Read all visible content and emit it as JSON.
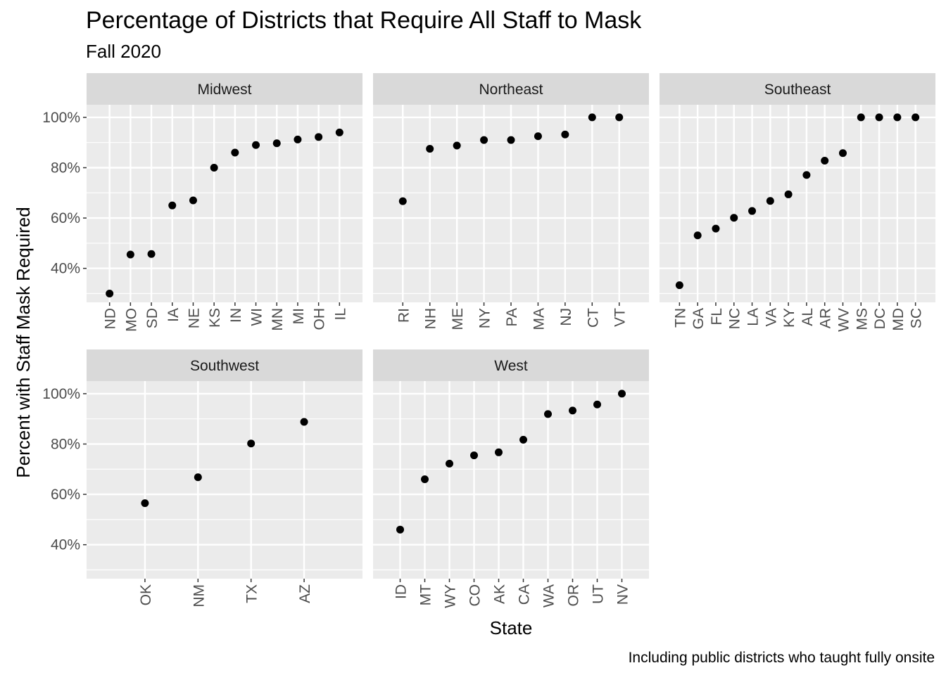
{
  "chart_data": {
    "type": "scatter",
    "title": "Percentage of Districts that Require All Staff to Mask",
    "subtitle": "Fall 2020",
    "xlabel": "State",
    "ylabel": "Percent with Staff Mask Required",
    "caption": "Including public districts who taught fully onsite",
    "ylim": [
      26.5,
      105
    ],
    "yticks": [
      40,
      60,
      80,
      100
    ],
    "ytick_labels": [
      "40%",
      "60%",
      "80%",
      "100%"
    ],
    "grid": true,
    "facets": [
      {
        "name": "Midwest",
        "categories": [
          "ND",
          "MO",
          "SD",
          "IA",
          "NE",
          "KS",
          "IN",
          "WI",
          "MN",
          "MI",
          "OH",
          "IL"
        ],
        "values": [
          30,
          45.5,
          45.7,
          65,
          67,
          80,
          86,
          89,
          89.7,
          91.2,
          92.2,
          94
        ]
      },
      {
        "name": "Northeast",
        "categories": [
          "RI",
          "NH",
          "ME",
          "NY",
          "PA",
          "MA",
          "NJ",
          "CT",
          "VT"
        ],
        "values": [
          66.7,
          87.5,
          88.8,
          91,
          91,
          92.5,
          93.2,
          100,
          100
        ]
      },
      {
        "name": "Southeast",
        "categories": [
          "TN",
          "GA",
          "FL",
          "NC",
          "LA",
          "VA",
          "KY",
          "AL",
          "AR",
          "WV",
          "MS",
          "DC",
          "MD",
          "SC"
        ],
        "values": [
          33.3,
          53.1,
          55.8,
          60.1,
          62.8,
          66.8,
          69.4,
          77.1,
          82.8,
          85.8,
          100,
          100,
          100,
          100
        ]
      },
      {
        "name": "Southwest",
        "categories": [
          "OK",
          "NM",
          "TX",
          "AZ"
        ],
        "values": [
          56.5,
          66.8,
          80.2,
          88.8
        ]
      },
      {
        "name": "West",
        "categories": [
          "ID",
          "MT",
          "WY",
          "CO",
          "AK",
          "CA",
          "WA",
          "OR",
          "UT",
          "NV"
        ],
        "values": [
          46,
          66,
          72.2,
          75.5,
          76.7,
          81.7,
          91.9,
          93.3,
          95.7,
          100
        ]
      }
    ]
  }
}
